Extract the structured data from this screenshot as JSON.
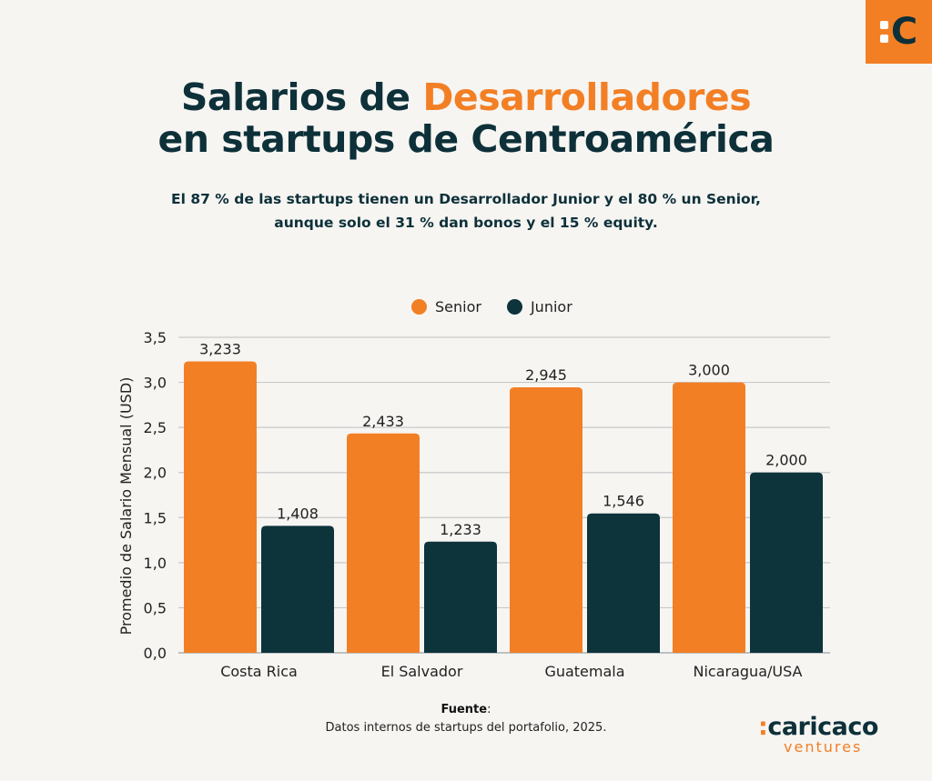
{
  "logo_badge": {
    "glyph": "C"
  },
  "title": {
    "line1_prefix": "Salarios de ",
    "line1_accent": "Desarrolladores",
    "line2": "en startups de Centroamérica"
  },
  "subtitle": {
    "line1": "El 87 % de las startups tienen un Desarrollador Junior y el 80 % un Senior,",
    "line2": "aunque solo el 31 % dan bonos y el 15 % equity."
  },
  "colors": {
    "senior": "#f37f25",
    "junior": "#0d333b",
    "text": "#0d3039",
    "grid": "#c9c9c9",
    "background": "#f6f5f2"
  },
  "chart_data": {
    "type": "bar",
    "title": "Salarios de Desarrolladores en startups de Centroamérica",
    "xlabel": "",
    "ylabel": "Promedio de Salario Mensual (USD)",
    "categories": [
      "Costa Rica",
      "El Salvador",
      "Guatemala",
      "Nicaragua/USA"
    ],
    "series": [
      {
        "name": "Senior",
        "values": [
          3.233,
          2.433,
          2.945,
          3.0
        ],
        "labels": [
          "3,233",
          "2,433",
          "2,945",
          "3,000"
        ]
      },
      {
        "name": "Junior",
        "values": [
          1.408,
          1.233,
          1.546,
          2.0
        ],
        "labels": [
          "1,408",
          "1,233",
          "1,546",
          "2,000"
        ]
      }
    ],
    "ylim": [
      0,
      3.5
    ],
    "yticks": [
      0,
      0.5,
      1.0,
      1.5,
      2.0,
      2.5,
      3.0,
      3.5
    ],
    "ytick_labels": [
      "0,0",
      "0,5",
      "1,0",
      "1,5",
      "2,0",
      "2,5",
      "3,0",
      "3,5"
    ],
    "grid": true,
    "legend_position": "top-center"
  },
  "source": {
    "label": "Fuente",
    "text": "Datos internos de startups del portafolio, 2025."
  },
  "brand": {
    "colon": ":",
    "name": "caricaco",
    "sub": "ventures"
  }
}
